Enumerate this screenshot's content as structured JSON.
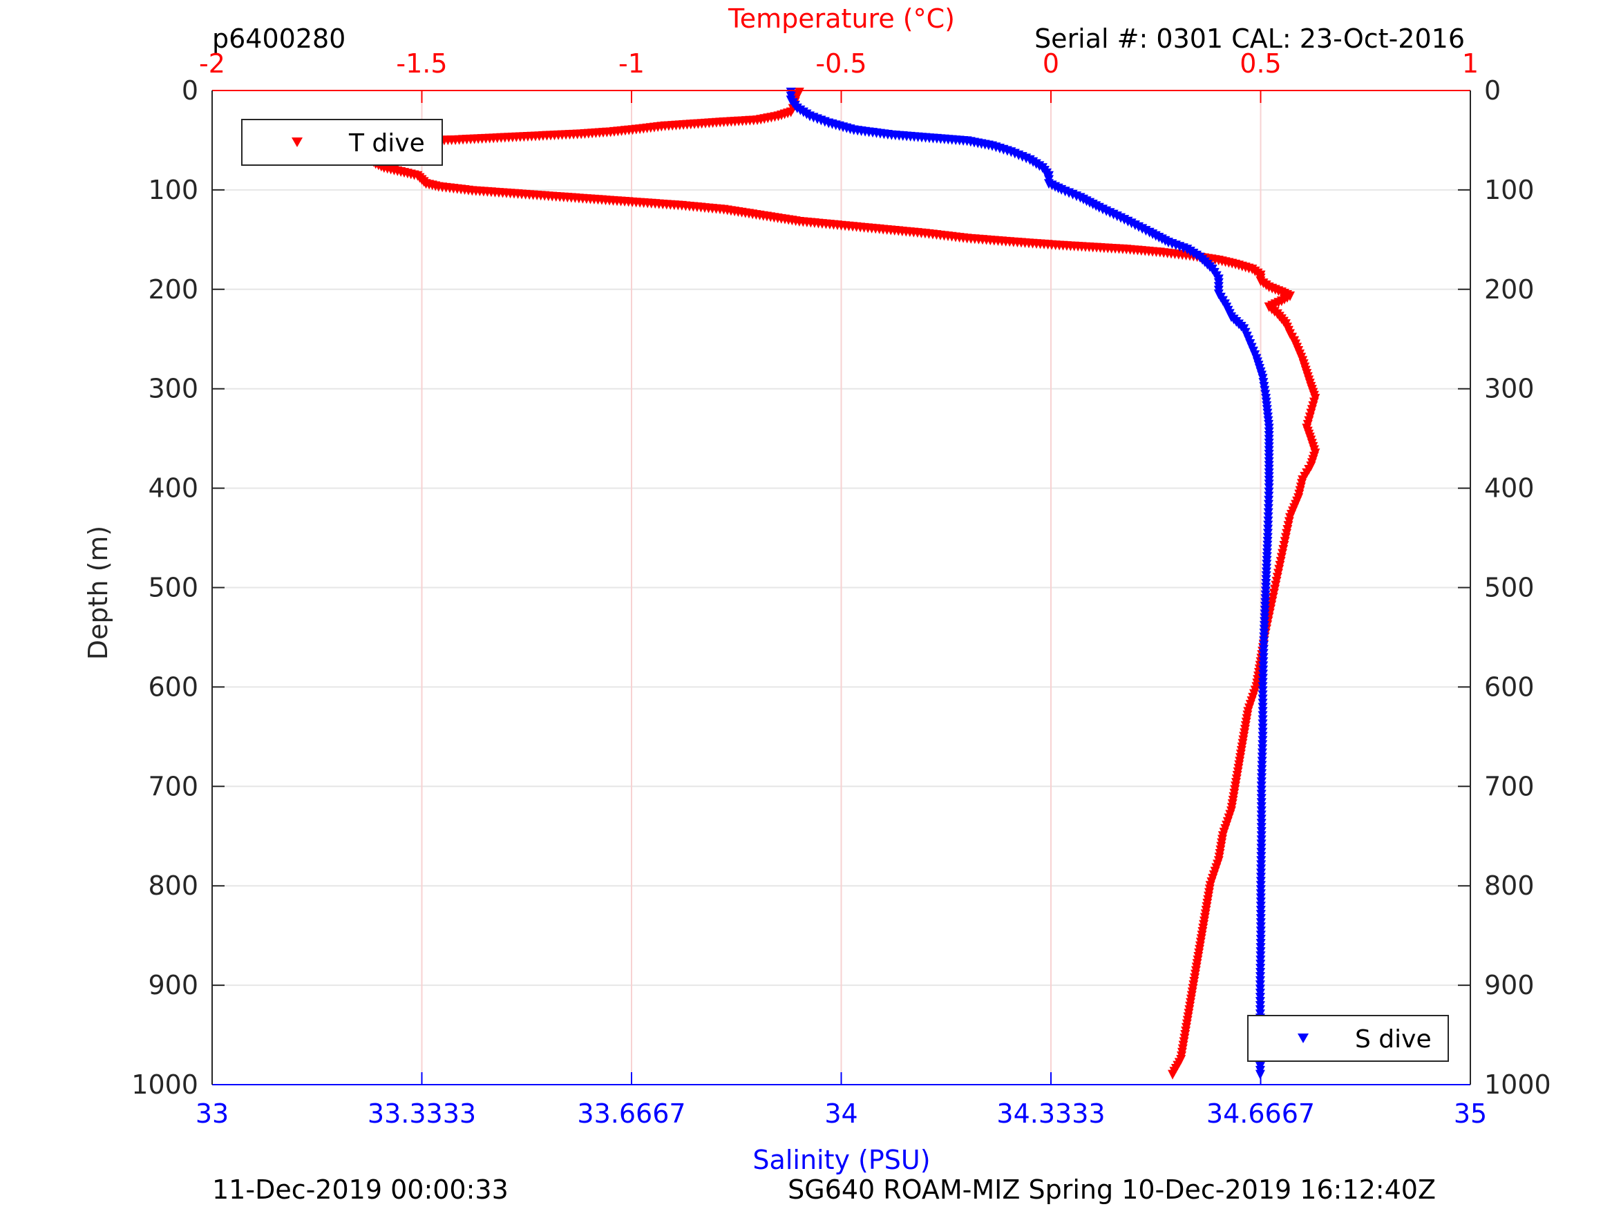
{
  "header": {
    "left": "p6400280",
    "right": "Serial #: 0301  CAL: 23-Oct-2016"
  },
  "footer": {
    "left": "11-Dec-2019 00:00:33",
    "right": "SG640 ROAM-MIZ Spring 10-Dec-2019 16:12:40Z"
  },
  "colors": {
    "temperature": "#ff0000",
    "salinity": "#0000ff",
    "axis": "#262626",
    "grid": "#e6e6e6"
  },
  "chart_data": {
    "type": "scatter",
    "marker": "triangle-down",
    "grid": true,
    "ylabel": "Depth (m)",
    "y_reversed": true,
    "ylim": [
      0,
      1000
    ],
    "yticks": [
      "0",
      "100",
      "200",
      "300",
      "400",
      "500",
      "600",
      "700",
      "800",
      "900",
      "1000"
    ],
    "temperature_axis": {
      "label": "Temperature (°C)",
      "position": "top",
      "xlim": [
        -2,
        1
      ],
      "ticks": [
        "-2",
        "-1.5",
        "-1",
        "-0.5",
        "0",
        "0.5",
        "1"
      ]
    },
    "salinity_axis": {
      "label": "Salinity (PSU)",
      "position": "bottom",
      "xlim": [
        33,
        35
      ],
      "ticks": [
        "33",
        "33.3333",
        "33.6667",
        "34",
        "34.3333",
        "34.6667",
        "35"
      ]
    },
    "series": [
      {
        "name": "T dive",
        "axis": "temperature",
        "legend_position": "top-left",
        "points": [
          [
            -0.6,
            2
          ],
          [
            -0.61,
            8
          ],
          [
            -0.61,
            15
          ],
          [
            -0.62,
            22
          ],
          [
            -0.65,
            26
          ],
          [
            -0.7,
            30
          ],
          [
            -0.78,
            32
          ],
          [
            -0.85,
            34
          ],
          [
            -0.92,
            36
          ],
          [
            -0.98,
            39
          ],
          [
            -1.05,
            42
          ],
          [
            -1.12,
            44
          ],
          [
            -1.22,
            46
          ],
          [
            -1.32,
            48
          ],
          [
            -1.42,
            50
          ],
          [
            -1.5,
            51
          ],
          [
            -1.55,
            53
          ],
          [
            -1.58,
            55
          ],
          [
            -1.6,
            58
          ],
          [
            -1.61,
            62
          ],
          [
            -1.62,
            66
          ],
          [
            -1.62,
            70
          ],
          [
            -1.61,
            74
          ],
          [
            -1.59,
            78
          ],
          [
            -1.55,
            82
          ],
          [
            -1.51,
            86
          ],
          [
            -1.5,
            90
          ],
          [
            -1.49,
            94
          ],
          [
            -1.46,
            97
          ],
          [
            -1.38,
            101
          ],
          [
            -1.28,
            104
          ],
          [
            -1.18,
            107
          ],
          [
            -1.08,
            110
          ],
          [
            -0.98,
            113
          ],
          [
            -0.88,
            116
          ],
          [
            -0.78,
            120
          ],
          [
            -0.72,
            124
          ],
          [
            -0.66,
            128
          ],
          [
            -0.6,
            132
          ],
          [
            -0.5,
            136
          ],
          [
            -0.4,
            140
          ],
          [
            -0.3,
            144
          ],
          [
            -0.2,
            149
          ],
          [
            -0.08,
            153
          ],
          [
            0.02,
            156
          ],
          [
            0.1,
            158
          ],
          [
            0.18,
            160
          ],
          [
            0.26,
            163
          ],
          [
            0.34,
            167
          ],
          [
            0.4,
            171
          ],
          [
            0.44,
            175
          ],
          [
            0.48,
            180
          ],
          [
            0.5,
            186
          ],
          [
            0.5,
            192
          ],
          [
            0.52,
            198
          ],
          [
            0.55,
            203
          ],
          [
            0.57,
            207
          ],
          [
            0.55,
            212
          ],
          [
            0.52,
            218
          ],
          [
            0.54,
            225
          ],
          [
            0.56,
            235
          ],
          [
            0.57,
            245
          ],
          [
            0.58,
            252
          ],
          [
            0.59,
            262
          ],
          [
            0.6,
            272
          ],
          [
            0.61,
            285
          ],
          [
            0.62,
            298
          ],
          [
            0.63,
            310
          ],
          [
            0.62,
            325
          ],
          [
            0.61,
            340
          ],
          [
            0.62,
            352
          ],
          [
            0.63,
            365
          ],
          [
            0.62,
            378
          ],
          [
            0.6,
            392
          ],
          [
            0.59,
            410
          ],
          [
            0.57,
            430
          ],
          [
            0.56,
            450
          ],
          [
            0.55,
            470
          ],
          [
            0.54,
            490
          ],
          [
            0.53,
            510
          ],
          [
            0.52,
            530
          ],
          [
            0.51,
            550
          ],
          [
            0.5,
            575
          ],
          [
            0.49,
            600
          ],
          [
            0.47,
            625
          ],
          [
            0.46,
            650
          ],
          [
            0.45,
            675
          ],
          [
            0.44,
            700
          ],
          [
            0.43,
            725
          ],
          [
            0.41,
            750
          ],
          [
            0.4,
            775
          ],
          [
            0.38,
            800
          ],
          [
            0.37,
            825
          ],
          [
            0.36,
            850
          ],
          [
            0.35,
            875
          ],
          [
            0.34,
            900
          ],
          [
            0.33,
            925
          ],
          [
            0.32,
            950
          ],
          [
            0.31,
            975
          ],
          [
            0.29,
            990
          ]
        ]
      },
      {
        "name": "S dive",
        "axis": "salinity",
        "legend_position": "bottom-right",
        "points": [
          [
            33.92,
            2
          ],
          [
            33.92,
            10
          ],
          [
            33.93,
            18
          ],
          [
            33.95,
            26
          ],
          [
            33.98,
            33
          ],
          [
            34.02,
            40
          ],
          [
            34.08,
            45
          ],
          [
            34.14,
            48
          ],
          [
            34.2,
            51
          ],
          [
            34.24,
            56
          ],
          [
            34.27,
            62
          ],
          [
            34.3,
            70
          ],
          [
            34.32,
            78
          ],
          [
            34.33,
            86
          ],
          [
            34.33,
            94
          ],
          [
            34.35,
            100
          ],
          [
            34.38,
            108
          ],
          [
            34.41,
            118
          ],
          [
            34.45,
            130
          ],
          [
            34.49,
            143
          ],
          [
            34.52,
            153
          ],
          [
            34.55,
            160
          ],
          [
            34.57,
            168
          ],
          [
            34.59,
            180
          ],
          [
            34.6,
            190
          ],
          [
            34.6,
            205
          ],
          [
            34.61,
            215
          ],
          [
            34.62,
            228
          ],
          [
            34.64,
            240
          ],
          [
            34.65,
            255
          ],
          [
            34.66,
            270
          ],
          [
            34.67,
            290
          ],
          [
            34.675,
            310
          ],
          [
            34.68,
            340
          ],
          [
            34.68,
            370
          ],
          [
            34.68,
            400
          ],
          [
            34.678,
            450
          ],
          [
            34.675,
            500
          ],
          [
            34.672,
            550
          ],
          [
            34.67,
            600
          ],
          [
            34.67,
            650
          ],
          [
            34.668,
            700
          ],
          [
            34.668,
            750
          ],
          [
            34.667,
            800
          ],
          [
            34.667,
            850
          ],
          [
            34.666,
            900
          ],
          [
            34.666,
            950
          ],
          [
            34.666,
            990
          ]
        ]
      }
    ]
  }
}
